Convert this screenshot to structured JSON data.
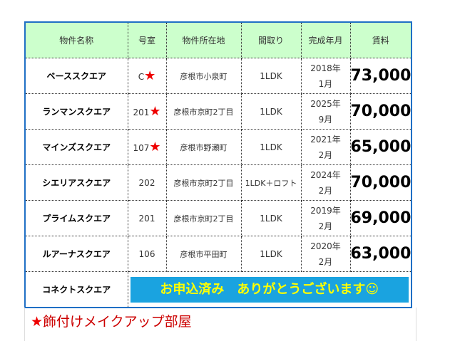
{
  "table": {
    "header": [
      "物件名称",
      "号室",
      "物件所在地",
      "間取り",
      "完成年月",
      "賃料"
    ],
    "rows": [
      {
        "name": "ベーススクエア",
        "room": "C",
        "star": "★",
        "address": "彦根市小泉町",
        "layout": "1LDK",
        "built": [
          "2018年",
          "1月"
        ],
        "rent": "73,000"
      },
      {
        "name": "ランマンスクエア",
        "room": "201",
        "star": "★",
        "address": "彦根市京町2丁目",
        "layout": "1LDK",
        "built": [
          "2025年",
          "9月"
        ],
        "rent": "70,000"
      },
      {
        "name": "マインズスクエア",
        "room": "107",
        "star": "★",
        "address": "彦根市野瀬町",
        "layout": "1LDK",
        "built": [
          "2021年",
          "2月"
        ],
        "rent": "65,000"
      },
      {
        "name": "シエリアスクエア",
        "room": "202",
        "address": "彦根市京町2丁目",
        "layout": "1LDK＋ロフト",
        "built": [
          "2024年",
          "2月"
        ],
        "rent": "70,000"
      },
      {
        "name": "プライムスクエア",
        "room": "201",
        "address": "彦根市京町2丁目",
        "layout": "1LDK",
        "built": [
          "2019年",
          "2月"
        ],
        "rent": "69,000"
      },
      {
        "name": "ルアーナスクエア",
        "room": "106",
        "address": "彦根市平田町",
        "layout": "1LDK",
        "built": [
          "2020年",
          "2月"
        ],
        "rent": "63,000"
      }
    ],
    "last_row": {
      "name": "コネクトスクエア",
      "banner": "お申込済み　ありがとうございます☺"
    }
  },
  "note": {
    "star": "★",
    "text": "飾付けメイクアップ部屋"
  }
}
